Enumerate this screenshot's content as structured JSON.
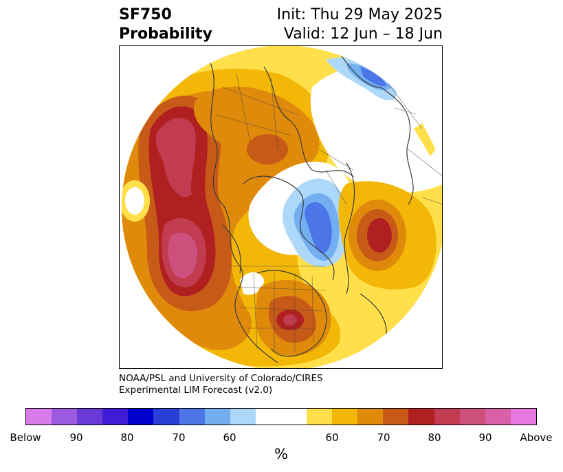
{
  "title": {
    "variable": "SF750",
    "product": "Probability",
    "init": "Init: Thu 29 May 2025",
    "valid": "Valid: 12 Jun – 18 Jun"
  },
  "credit": {
    "line1": "NOAA/PSL and University of Colorado/CIRES",
    "line2": "Experimental LIM Forecast (v2.0)"
  },
  "colorbar": {
    "unit": "%",
    "labels": [
      "Below",
      "90",
      "80",
      "70",
      "60",
      "60",
      "70",
      "80",
      "90",
      "Above"
    ],
    "colors": [
      "#d87cec",
      "#9b5ae0",
      "#6a3ad8",
      "#3f1dd6",
      "#0000cd",
      "#2a3ed8",
      "#4c76e8",
      "#72aef0",
      "#aed8fa",
      "#ffffff",
      "#ffe04a",
      "#f2b707",
      "#e08a0b",
      "#c85a18",
      "#b02020",
      "#c13c50",
      "#cc4f7c",
      "#d860a8",
      "#e878e0"
    ]
  },
  "map": {
    "projection": "north-polar-stereographic",
    "colors": {
      "coast": "#3a3a3a"
    }
  }
}
